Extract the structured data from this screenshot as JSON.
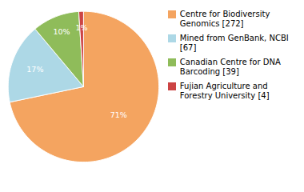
{
  "chart_data": {
    "type": "pie",
    "categories": [
      "Centre for Biodiversity\nGenomics [272]",
      "Mined from GenBank, NCBI [67]",
      "Canadian Centre for DNA\nBarcoding [39]",
      "Fujian Agriculture and\nForestry University [4]"
    ],
    "values": [
      71,
      17,
      10,
      1
    ],
    "value_labels": [
      "71%",
      "17%",
      "10%",
      "1%"
    ],
    "colors": [
      "#F4A460",
      "#ADD8E6",
      "#8FBC5A",
      "#CC4444"
    ],
    "data_labels": true,
    "legend": "right"
  }
}
